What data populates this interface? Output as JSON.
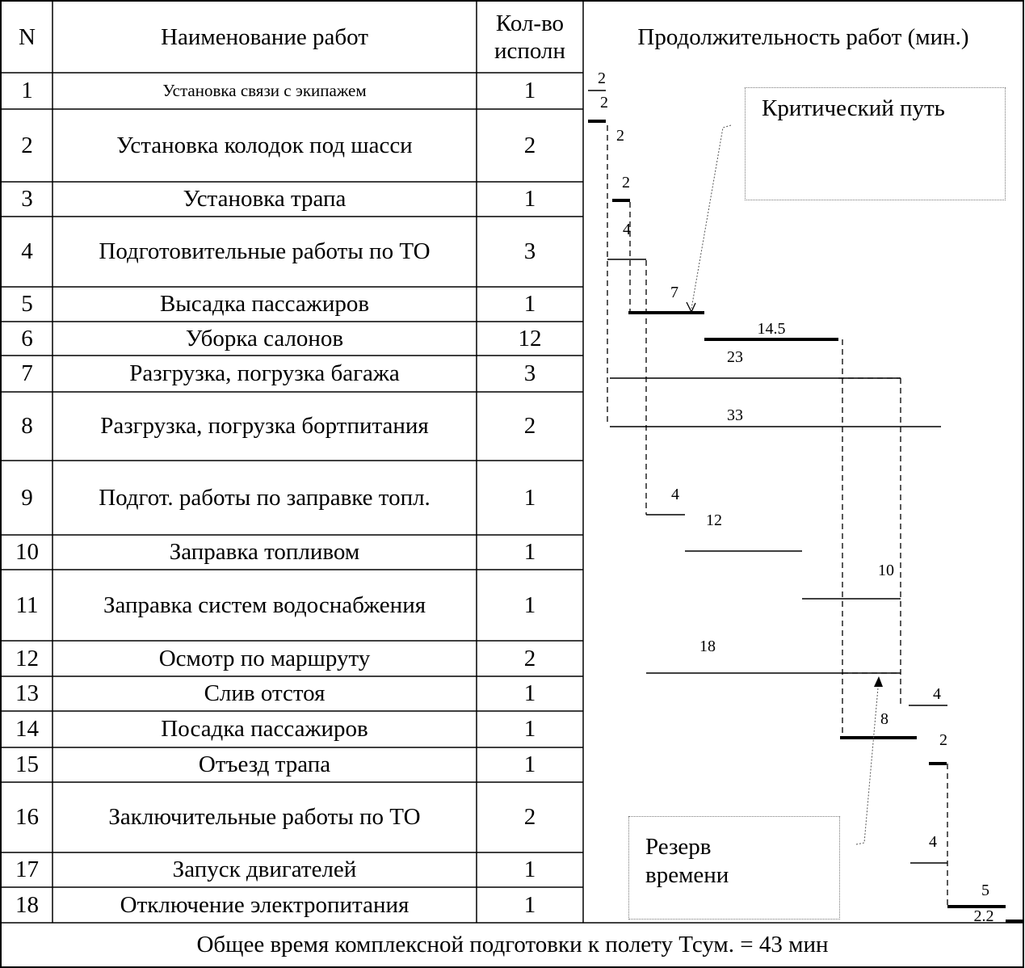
{
  "header": {
    "n": "N",
    "name": "Наименование работ",
    "count": "Кол-во исполн",
    "duration": "Продолжительность работ (мин.)"
  },
  "rows": [
    {
      "n": "1",
      "name": "Установка связи с экипажем",
      "count": "1",
      "duration": "2"
    },
    {
      "n": "2",
      "name": "Установка колодок под шасси",
      "count": "2",
      "duration": "2"
    },
    {
      "n": "3",
      "name": "Установка трапа",
      "count": "1",
      "duration": "2"
    },
    {
      "n": "4",
      "name": "Подготовительные работы по ТО",
      "count": "3",
      "duration": "4"
    },
    {
      "n": "5",
      "name": "Высадка пассажиров",
      "count": "1",
      "duration": "7"
    },
    {
      "n": "6",
      "name": "Уборка салонов",
      "count": "12",
      "duration": "14.5"
    },
    {
      "n": "7",
      "name": "Разгрузка, погрузка багажа",
      "count": "3",
      "duration": "23"
    },
    {
      "n": "8",
      "name": "Разгрузка, погрузка бортпитания",
      "count": "2",
      "duration": "33"
    },
    {
      "n": "9",
      "name": "Подгот. работы по заправке топл.",
      "count": "1",
      "duration": "4"
    },
    {
      "n": "10",
      "name": "Заправка топливом",
      "count": "1",
      "duration": "12"
    },
    {
      "n": "11",
      "name": "Заправка систем водоснабжения",
      "count": "1",
      "duration": "10"
    },
    {
      "n": "12",
      "name": "Осмотр по маршруту",
      "count": "2",
      "duration": "18"
    },
    {
      "n": "13",
      "name": "Слив отстоя",
      "count": "1",
      "duration": "4"
    },
    {
      "n": "14",
      "name": "Посадка пассажиров",
      "count": "1",
      "duration": "8"
    },
    {
      "n": "15",
      "name": "Отъезд трапа",
      "count": "1",
      "duration": "2"
    },
    {
      "n": "16",
      "name": "Заключительные работы по ТО",
      "count": "2",
      "duration": "4"
    },
    {
      "n": "17",
      "name": "Запуск двигателей",
      "count": "1",
      "duration": "5"
    },
    {
      "n": "18",
      "name": "Отключение электропитания",
      "count": "1",
      "duration": "2.2"
    }
  ],
  "diagram": {
    "extra_label": "2",
    "critical_note": "Критический путь",
    "reserve_note": "Резерв времени"
  },
  "footer": "Общее время комплексной подготовки к полету Тсум. = 43 мин"
}
